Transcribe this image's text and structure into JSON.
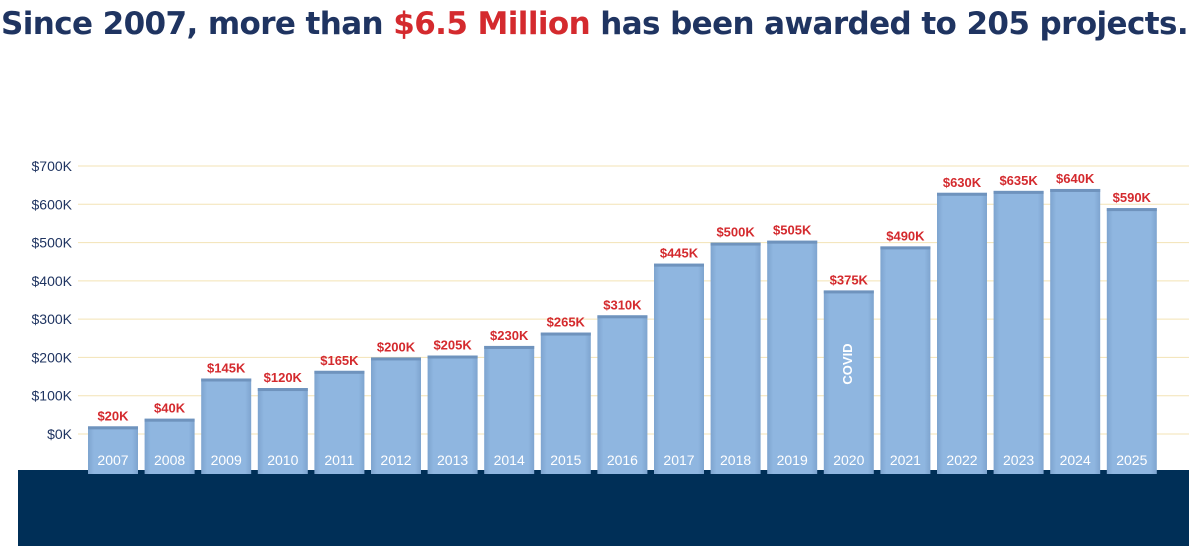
{
  "headline": {
    "prefix": "Since 2007, more than ",
    "highlight": "$6.5 Million",
    "suffix": " has been awarded to 205 projects."
  },
  "colors": {
    "headline_text": "#1f3461",
    "highlight": "#d42a2e",
    "bar_fill": "#8fb6e0",
    "bar_edge": "#6f93bd",
    "value_label": "#d42a2e",
    "axis_label": "#1f3461",
    "base_band": "#002f57",
    "gridline": "#f3e3b5"
  },
  "chart_data": {
    "type": "bar",
    "title": "Since 2007, more than $6.5 Million has been awarded to 205 projects.",
    "categories": [
      "2007",
      "2008",
      "2009",
      "2010",
      "2011",
      "2012",
      "2013",
      "2014",
      "2015",
      "2016",
      "2017",
      "2018",
      "2019",
      "2020",
      "2021",
      "2022",
      "2023",
      "2024",
      "2025"
    ],
    "values": [
      20,
      40,
      145,
      120,
      165,
      200,
      205,
      230,
      265,
      310,
      445,
      500,
      505,
      375,
      490,
      630,
      635,
      640,
      590
    ],
    "value_labels": [
      "$20K",
      "$40K",
      "$145K",
      "$120K",
      "$165K",
      "$200K",
      "$205K",
      "$230K",
      "$265K",
      "$310K",
      "$445K",
      "$500K",
      "$505K",
      "$375K",
      "$490K",
      "$630K",
      "$635K",
      "$640K",
      "$590K"
    ],
    "unit": "thousand USD",
    "ylim": [
      0,
      700
    ],
    "y_ticks": [
      0,
      100,
      200,
      300,
      400,
      500,
      600,
      700
    ],
    "y_tick_labels": [
      "$0K",
      "$100K",
      "$200K",
      "$300K",
      "$400K",
      "$500K",
      "$600K",
      "$700K"
    ],
    "annotations": [
      {
        "category": "2020",
        "text": "COVID"
      }
    ],
    "grid": true,
    "xlabel": "",
    "ylabel": ""
  }
}
